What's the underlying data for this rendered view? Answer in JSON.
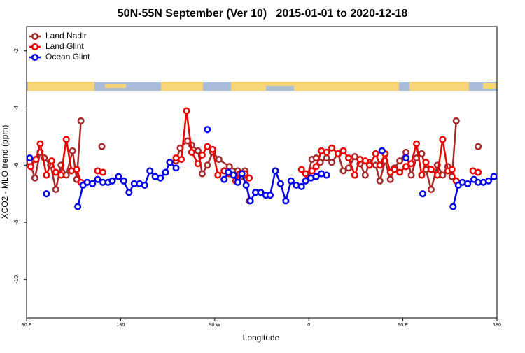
{
  "chart_data": {
    "type": "line",
    "title": "50N-55N September (Ver 10)   2015-01-01 to 2020-12-18",
    "x_label": "Longitude",
    "y_label": "XCO2 - MLO trend (ppm)",
    "xlim": [
      90,
      540
    ],
    "ylim": [
      -11.35,
      -1.15
    ],
    "xticks": [
      {
        "value": 90,
        "label": "90 E"
      },
      180,
      {
        "value": 270,
        "label": "90 W"
      },
      {
        "value": 360,
        "label": "0"
      },
      {
        "value": 450,
        "label": "90 E"
      },
      {
        "value": 540,
        "label": "180"
      }
    ],
    "yticks": [
      -10,
      -8,
      -6,
      -4,
      -2
    ],
    "legend": "upper left",
    "series": [
      {
        "name": "Land Nadir",
        "color": "#a52a2a",
        "x": [
          93,
          98,
          103,
          107,
          113,
          118,
          123,
          128,
          134,
          138,
          142,
          162,
          233,
          237,
          244,
          248,
          254,
          258,
          263,
          268,
          274,
          284,
          292,
          296,
          299,
          303,
          359,
          363,
          367,
          371,
          377,
          382,
          388,
          393,
          398,
          404,
          409,
          414,
          418,
          424,
          428,
          433,
          438,
          442,
          447,
          453,
          458,
          463,
          468,
          472,
          477,
          483,
          488,
          493,
          497,
          501,
          522
        ],
        "values": [
          -5.9,
          -6.45,
          -5.55,
          -5.75,
          -6.0,
          -6.85,
          -6.0,
          -6.35,
          -5.5,
          -6.5,
          -4.45,
          -5.35,
          -5.85,
          -5.4,
          -5.15,
          -5.3,
          -5.5,
          -6.3,
          -6.0,
          -5.55,
          -5.8,
          -6.05,
          -6.2,
          -6.4,
          -6.2,
          -7.25,
          -6.35,
          -5.8,
          -5.75,
          -5.9,
          -5.75,
          -5.9,
          -5.6,
          -6.2,
          -6.1,
          -5.7,
          -5.95,
          -6.35,
          -5.9,
          -6.0,
          -6.55,
          -5.85,
          -6.5,
          -6.1,
          -5.85,
          -5.55,
          -6.35,
          -5.75,
          -5.6,
          -6.15,
          -6.85,
          -6.0,
          -6.35,
          -6.05,
          -6.4,
          -4.45,
          -5.35
        ]
      },
      {
        "name": "Land Glint",
        "color": "#ee0000",
        "x": [
          94,
          99,
          103,
          109,
          114,
          118,
          123,
          128,
          133,
          138,
          142,
          158,
          163,
          233,
          238,
          243,
          248,
          254,
          258,
          263,
          268,
          273,
          279,
          284,
          290,
          294,
          299,
          303,
          353,
          357,
          363,
          367,
          372,
          377,
          382,
          388,
          393,
          398,
          404,
          409,
          414,
          418,
          424,
          428,
          433,
          438,
          442,
          447,
          453,
          458,
          463,
          468,
          472,
          477,
          483,
          488,
          493,
          497,
          501,
          517,
          522
        ],
        "values": [
          -6.05,
          -5.8,
          -5.25,
          -6.35,
          -5.85,
          -6.25,
          -6.35,
          -5.1,
          -6.2,
          -6.15,
          -6.6,
          -6.2,
          -6.25,
          -5.75,
          -5.8,
          -4.1,
          -5.55,
          -5.95,
          -5.65,
          -5.35,
          -5.45,
          -6.35,
          -6.2,
          -6.3,
          -6.55,
          -6.3,
          -6.3,
          -6.45,
          -6.15,
          -6.3,
          -6.2,
          -6.05,
          -5.5,
          -5.55,
          -5.4,
          -5.6,
          -5.5,
          -5.75,
          -6.35,
          -5.8,
          -5.85,
          -6.0,
          -5.6,
          -6.0,
          -5.6,
          -6.25,
          -6.15,
          -6.25,
          -6.05,
          -5.95,
          -5.25,
          -6.35,
          -5.9,
          -6.15,
          -6.35,
          -5.1,
          -6.2,
          -6.15,
          -6.55,
          -6.2,
          -6.25
        ]
      },
      {
        "name": "Ocean Glint",
        "color": "#0000ee",
        "x": [
          93,
          109,
          139,
          144,
          148,
          153,
          158,
          163,
          168,
          172,
          178,
          183,
          188,
          193,
          198,
          203,
          208,
          213,
          218,
          223,
          227,
          233,
          263,
          279,
          283,
          288,
          292,
          296,
          300,
          304,
          309,
          314,
          319,
          323,
          328,
          333,
          338,
          343,
          348,
          353,
          357,
          362,
          367,
          372,
          377,
          430,
          453,
          469,
          498,
          503,
          507,
          512,
          518,
          522,
          527,
          532,
          537
        ],
        "values": [
          -5.75,
          -7.0,
          -7.45,
          -6.7,
          -6.6,
          -6.65,
          -6.5,
          -6.6,
          -6.6,
          -6.55,
          -6.4,
          -6.55,
          -6.95,
          -6.65,
          -6.65,
          -6.7,
          -6.2,
          -6.4,
          -6.45,
          -6.25,
          -5.9,
          -6.1,
          -4.75,
          -6.5,
          -6.25,
          -6.35,
          -6.6,
          -6.3,
          -6.7,
          -7.25,
          -6.95,
          -6.95,
          -7.05,
          -7.05,
          -6.2,
          -6.65,
          -7.25,
          -6.55,
          -6.7,
          -6.75,
          -6.55,
          -6.45,
          -6.4,
          -6.3,
          -6.35,
          -5.5,
          -5.75,
          -7.0,
          -7.45,
          -6.7,
          -6.6,
          -6.65,
          -6.5,
          -6.6,
          -6.6,
          -6.55,
          -6.4
        ]
      }
    ]
  }
}
